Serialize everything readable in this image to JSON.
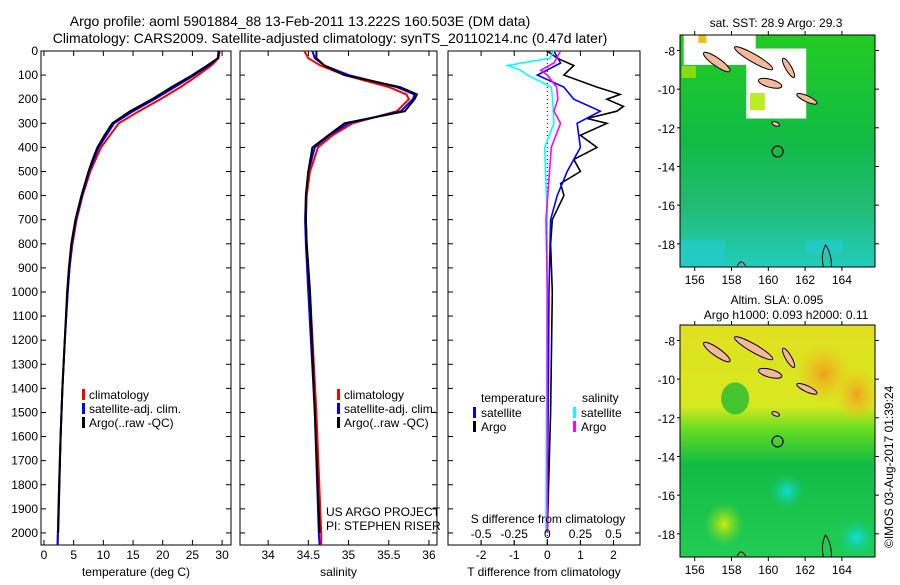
{
  "title_line1": "Argo profile: aoml 5901884_88 13-Feb-2011 13.222S 160.503E (DM data)",
  "title_line2": "Climatology: CARS2009. Satellite-adjusted climatology: synTS_20110214.nc (0.47d later)",
  "colors": {
    "climatology": "#ff0000",
    "satellite": "#0000ff",
    "argo": "#000000",
    "sal_sat": "#00ffff",
    "sal_argo": "#ff00ff",
    "island": "#f5b89a"
  },
  "chart_data": [
    {
      "type": "line",
      "name": "temperature-profile",
      "xlabel": "temperature (deg C)",
      "ylabel": "",
      "xlim": [
        -0.5,
        31.5
      ],
      "ylim": [
        2050,
        0
      ],
      "xticks": [
        0,
        5,
        10,
        15,
        20,
        25,
        30
      ],
      "yticks": [
        0,
        100,
        200,
        300,
        400,
        500,
        600,
        700,
        800,
        900,
        1000,
        1100,
        1200,
        1300,
        1400,
        1500,
        1600,
        1700,
        1800,
        1900,
        2000
      ],
      "legend": [
        "climatology",
        "satellite-adj. clim.",
        "Argo(..raw -QC)"
      ],
      "legend_position": "lower-left",
      "series": [
        {
          "name": "climatology",
          "color": "#ff0000",
          "depth": [
            0,
            30,
            60,
            100,
            150,
            200,
            250,
            300,
            400,
            500,
            600,
            700,
            800,
            900,
            1000,
            1200,
            1400,
            1600,
            1800,
            2000,
            2050
          ],
          "values": [
            29.6,
            29.4,
            28.2,
            26.0,
            23.0,
            19.6,
            16.0,
            12.6,
            9.6,
            7.8,
            6.5,
            5.5,
            4.8,
            4.3,
            4.0,
            3.5,
            3.1,
            2.8,
            2.55,
            2.35,
            2.3
          ]
        },
        {
          "name": "satellite-adj. clim.",
          "color": "#0000ff",
          "depth": [
            0,
            30,
            60,
            100,
            150,
            200,
            250,
            300,
            400,
            500,
            600,
            700,
            800,
            900,
            1000,
            1200,
            1400,
            1600,
            1800,
            2000,
            2050
          ],
          "values": [
            29.5,
            29.3,
            27.8,
            25.3,
            22.0,
            18.6,
            15.0,
            11.8,
            9.2,
            7.6,
            6.4,
            5.4,
            4.7,
            4.3,
            4.0,
            3.5,
            3.1,
            2.8,
            2.55,
            2.35,
            2.3
          ]
        },
        {
          "name": "Argo(..raw -QC)",
          "color": "#000000",
          "depth": [
            0,
            30,
            60,
            100,
            150,
            200,
            250,
            300,
            350,
            400,
            450,
            500,
            600,
            700,
            800,
            900,
            1000,
            1200,
            1400,
            1600,
            1800,
            2000
          ],
          "values": [
            29.4,
            29.3,
            27.5,
            25.0,
            21.5,
            18.2,
            14.5,
            11.5,
            10.2,
            9.0,
            8.2,
            7.5,
            6.3,
            5.3,
            4.6,
            4.2,
            3.9,
            3.5,
            3.1,
            2.8,
            2.6,
            2.4
          ]
        }
      ]
    },
    {
      "type": "line",
      "name": "salinity-profile",
      "xlabel": "salinity",
      "xlim": [
        33.65,
        36.1
      ],
      "ylim": [
        2050,
        0
      ],
      "xticks": [
        34,
        34.5,
        35,
        35.5,
        36
      ],
      "legend": [
        "climatology",
        "satellite-adj. clim.",
        "Argo(..raw -QC)"
      ],
      "legend_position": "lower-right",
      "annotation": [
        "US ARGO PROJECT",
        "PI: STEPHEN RISER"
      ],
      "series": [
        {
          "name": "climatology",
          "color": "#ff0000",
          "depth": [
            0,
            30,
            60,
            100,
            150,
            180,
            200,
            250,
            300,
            350,
            400,
            500,
            600,
            700,
            800,
            1000,
            1500,
            2000,
            2050
          ],
          "values": [
            34.45,
            34.5,
            34.65,
            34.95,
            35.5,
            35.72,
            35.75,
            35.6,
            35.05,
            34.8,
            34.62,
            34.52,
            34.48,
            34.47,
            34.48,
            34.52,
            34.6,
            34.66,
            34.66
          ]
        },
        {
          "name": "satellite-adj. clim.",
          "color": "#0000ff",
          "depth": [
            0,
            30,
            60,
            100,
            150,
            180,
            200,
            250,
            300,
            350,
            400,
            500,
            600,
            700,
            800,
            1000,
            1500,
            2000,
            2050
          ],
          "values": [
            34.55,
            34.58,
            34.7,
            35.0,
            35.6,
            35.82,
            35.8,
            35.65,
            35.0,
            34.76,
            34.58,
            34.5,
            34.47,
            34.46,
            34.47,
            34.5,
            34.58,
            34.63,
            34.64
          ]
        },
        {
          "name": "Argo(..raw -QC)",
          "color": "#000000",
          "depth": [
            0,
            30,
            60,
            100,
            150,
            180,
            200,
            250,
            300,
            350,
            400,
            500,
            600,
            700,
            800,
            1000,
            1500,
            2000
          ],
          "values": [
            34.6,
            34.6,
            34.7,
            34.95,
            35.64,
            35.85,
            35.82,
            35.7,
            34.95,
            34.75,
            34.55,
            34.5,
            34.47,
            34.47,
            34.48,
            34.52,
            34.58,
            34.64
          ]
        }
      ]
    },
    {
      "type": "line",
      "name": "difference-profile",
      "xlabel": "T difference from climatology",
      "xlabel2": "S difference from climatology",
      "xlim": [
        -3,
        2.8
      ],
      "s_xlim": [
        -0.75,
        0.7
      ],
      "ylim": [
        2050,
        0
      ],
      "xticks": [
        -2,
        -1,
        0,
        1,
        2
      ],
      "s_xticks": [
        "-0.5",
        "-0.25",
        "0",
        "0.25",
        "0.5"
      ],
      "s_xtick_values": [
        -0.5,
        -0.25,
        0,
        0.25,
        0.5
      ],
      "legend_titles": [
        "temperature",
        "salinity"
      ],
      "legend": [
        "satellite",
        "Argo",
        "satellite",
        "Argo"
      ],
      "series": [
        {
          "name": "T Argo",
          "var": "T",
          "color": "#000000",
          "depth": [
            0,
            30,
            60,
            100,
            150,
            180,
            200,
            230,
            250,
            280,
            300,
            350,
            400,
            450,
            500,
            550,
            600,
            700,
            800,
            1000,
            1500,
            2000
          ],
          "values": [
            0,
            0.3,
            0.8,
            0.5,
            1.5,
            2.2,
            1.8,
            2.3,
            2.1,
            1.2,
            1.8,
            1.0,
            1.5,
            0.8,
            1.0,
            0.4,
            0.5,
            0.15,
            0.1,
            0.15,
            0.1,
            0.0
          ]
        },
        {
          "name": "T satellite",
          "var": "T",
          "color": "#0000ff",
          "depth": [
            0,
            50,
            100,
            150,
            200,
            250,
            300,
            400,
            500,
            600,
            700,
            1000,
            2000
          ],
          "values": [
            0.2,
            0.4,
            -0.3,
            0.5,
            0.8,
            1.6,
            0.9,
            1.0,
            0.6,
            0.3,
            0.1,
            0.05,
            0
          ]
        },
        {
          "name": "S satellite",
          "var": "S",
          "color": "#00ffff",
          "depth": [
            0,
            30,
            60,
            80,
            100,
            150,
            200,
            300,
            400,
            700,
            2000
          ],
          "values": [
            0.05,
            0.02,
            -0.3,
            -0.2,
            -0.15,
            0.03,
            0.04,
            0.05,
            -0.02,
            0,
            -0.01
          ]
        },
        {
          "name": "S Argo",
          "var": "S",
          "color": "#ff00ff",
          "depth": [
            0,
            50,
            80,
            100,
            150,
            200,
            250,
            300,
            400,
            700,
            1000,
            2000
          ],
          "values": [
            0.1,
            0.05,
            -0.05,
            0.0,
            0.07,
            0.08,
            0.05,
            0.1,
            0.03,
            -0.01,
            0,
            0
          ]
        }
      ]
    },
    {
      "type": "heatmap",
      "name": "sst-map",
      "title": "sat. SST: 28.9 Argo: 29.3",
      "xlim": [
        155.2,
        165.8
      ],
      "ylim": [
        -19.2,
        -7.2
      ],
      "xticks": [
        156,
        158,
        160,
        162,
        164
      ],
      "yticks": [
        -8,
        -10,
        -12,
        -14,
        -16,
        -18
      ],
      "argo_position": [
        160.503,
        -13.222
      ]
    },
    {
      "type": "heatmap",
      "name": "sla-map",
      "title": "Altim. SLA: 0.095",
      "subtitle": "Argo h1000: 0.093 h2000: 0.11",
      "xlim": [
        155.2,
        165.8
      ],
      "ylim": [
        -19.2,
        -7.2
      ],
      "xticks": [
        156,
        158,
        160,
        162,
        164
      ],
      "yticks": [
        -8,
        -10,
        -12,
        -14,
        -16,
        -18
      ],
      "argo_position": [
        160.503,
        -13.222
      ]
    }
  ],
  "copyright": "©IMOS 03-Aug-2017 01:39:24"
}
